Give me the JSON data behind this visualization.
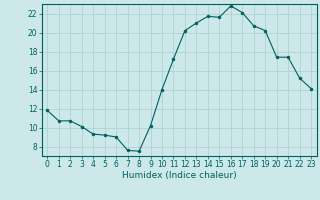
{
  "x": [
    0,
    1,
    2,
    3,
    4,
    5,
    6,
    7,
    8,
    9,
    10,
    11,
    12,
    13,
    14,
    15,
    16,
    17,
    18,
    19,
    20,
    21,
    22,
    23
  ],
  "y": [
    11.8,
    10.7,
    10.7,
    10.1,
    9.3,
    9.2,
    9.0,
    7.6,
    7.5,
    10.2,
    14.0,
    17.2,
    20.2,
    21.0,
    21.7,
    21.6,
    22.8,
    22.1,
    20.7,
    20.2,
    17.4,
    17.4,
    15.2,
    14.1
  ],
  "xlabel": "Humidex (Indice chaleur)",
  "xlim": [
    -0.5,
    23.5
  ],
  "ylim": [
    7,
    23
  ],
  "yticks": [
    8,
    10,
    12,
    14,
    16,
    18,
    20,
    22
  ],
  "xticks": [
    0,
    1,
    2,
    3,
    4,
    5,
    6,
    7,
    8,
    9,
    10,
    11,
    12,
    13,
    14,
    15,
    16,
    17,
    18,
    19,
    20,
    21,
    22,
    23
  ],
  "line_color": "#006060",
  "marker_color": "#006060",
  "bg_color": "#cce8e8",
  "grid_color": "#aacece",
  "axis_color": "#006060",
  "tick_color": "#006060",
  "label_color": "#006060",
  "tick_fontsize": 5.5,
  "xlabel_fontsize": 6.5
}
